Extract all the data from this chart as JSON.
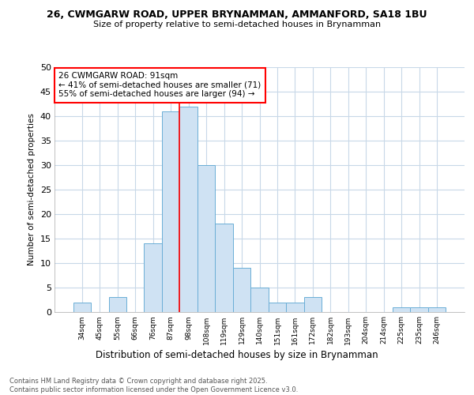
{
  "title1": "26, CWMGARW ROAD, UPPER BRYNAMMAN, AMMANFORD, SA18 1BU",
  "title2": "Size of property relative to semi-detached houses in Brynamman",
  "xlabel": "Distribution of semi-detached houses by size in Brynamman",
  "ylabel": "Number of semi-detached properties",
  "bin_labels": [
    "34sqm",
    "45sqm",
    "55sqm",
    "66sqm",
    "76sqm",
    "87sqm",
    "98sqm",
    "108sqm",
    "119sqm",
    "129sqm",
    "140sqm",
    "151sqm",
    "161sqm",
    "172sqm",
    "182sqm",
    "193sqm",
    "204sqm",
    "214sqm",
    "225sqm",
    "235sqm",
    "246sqm"
  ],
  "bar_values": [
    2,
    0,
    3,
    0,
    14,
    41,
    42,
    30,
    18,
    9,
    5,
    2,
    2,
    3,
    0,
    0,
    0,
    0,
    1,
    1,
    1
  ],
  "bar_color": "#cfe2f3",
  "bar_edge_color": "#6baed6",
  "vline_x": 5.5,
  "annotation_title": "26 CWMGARW ROAD: 91sqm",
  "annotation_line1": "← 41% of semi-detached houses are smaller (71)",
  "annotation_line2": "55% of semi-detached houses are larger (94) →",
  "ylim": [
    0,
    50
  ],
  "yticks": [
    0,
    5,
    10,
    15,
    20,
    25,
    30,
    35,
    40,
    45,
    50
  ],
  "footnote": "Contains HM Land Registry data © Crown copyright and database right 2025.\nContains public sector information licensed under the Open Government Licence v3.0.",
  "bg_color": "#ffffff",
  "plot_bg_color": "#ffffff",
  "grid_color": "#c8d8e8"
}
